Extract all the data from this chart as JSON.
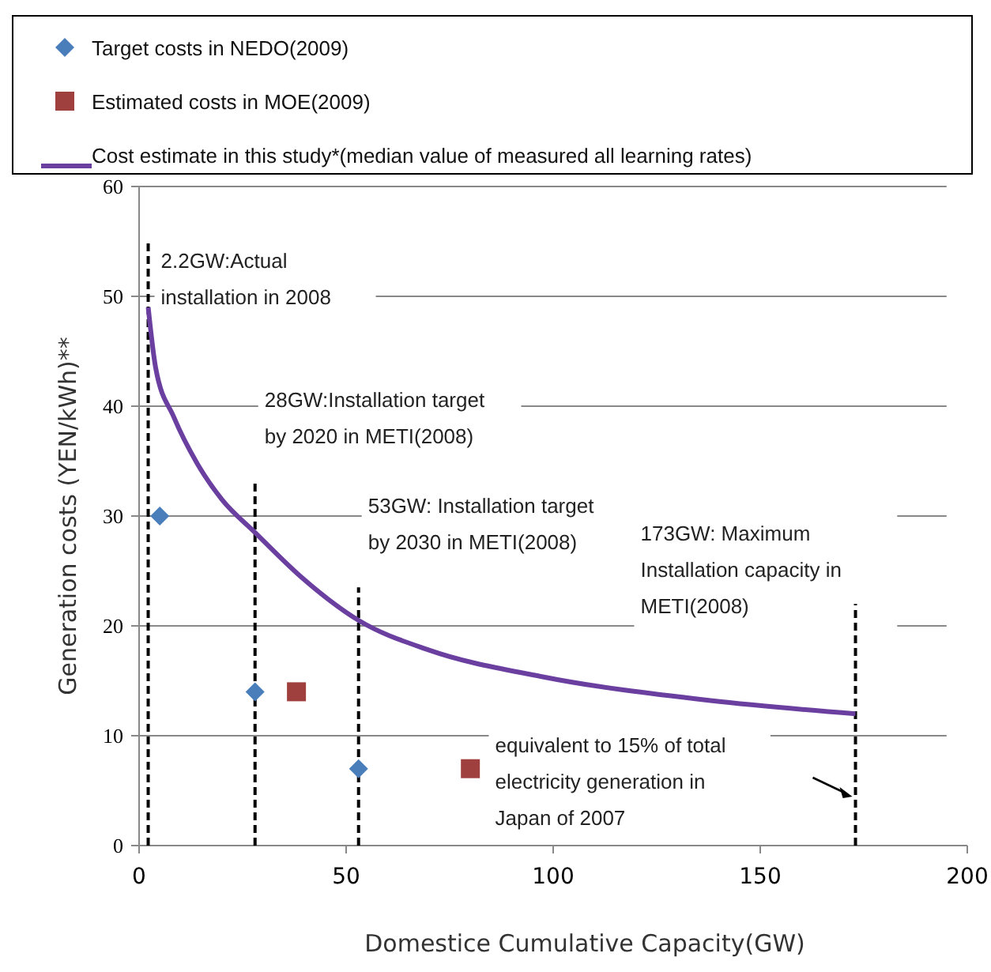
{
  "chart_data": {
    "type": "scatter",
    "xlabel": "Domestice Cumulative Capacity(GW)",
    "ylabel": "Generation costs (YEN/kWh)**",
    "xlim": [
      0,
      200
    ],
    "ylim": [
      0,
      60
    ],
    "xticks": [
      0,
      50,
      100,
      150,
      200
    ],
    "yticks": [
      0,
      10,
      20,
      30,
      40,
      50,
      60
    ],
    "grid": "y",
    "legend": "top",
    "series": [
      {
        "name": "Target costs in NEDO(2009)",
        "marker": "diamond",
        "color": "#4a7ebb",
        "x": [
          5,
          28,
          53
        ],
        "values": [
          30,
          14,
          7
        ]
      },
      {
        "name": "Estimated costs in MOE(2009)",
        "marker": "square",
        "color": "#a0403e",
        "x": [
          38,
          80
        ],
        "values": [
          14,
          7
        ]
      },
      {
        "name": "Cost estimate in this study*(median value of measured all learning rates)",
        "type": "line",
        "marker": "none",
        "color": "#6a3fa0",
        "x": [
          2.2,
          4,
          8.4,
          14,
          20,
          28,
          39,
          53,
          70,
          97,
          138,
          173
        ],
        "values": [
          49,
          43.5,
          39,
          34.8,
          31.5,
          28.5,
          24.5,
          20.5,
          17.8,
          15.4,
          13.2,
          12
        ]
      }
    ],
    "ref_lines": [
      {
        "axis": "x",
        "value": 2.2,
        "label": "2.2GW:Actual installation in 2008",
        "line_style": "dashed",
        "color": "#000000"
      },
      {
        "axis": "x",
        "value": 28,
        "label": "28GW:Installation target by 2020 in METI(2008)",
        "line_style": "dashed",
        "color": "#000000"
      },
      {
        "axis": "x",
        "value": 53,
        "label": "53GW: Installation target by 2030 in METI(2008)",
        "line_style": "dashed",
        "color": "#000000"
      },
      {
        "axis": "x",
        "value": 173,
        "label": "173GW: Maximum Installation capacity in METI(2008)",
        "line_style": "dashed",
        "color": "#000000"
      }
    ],
    "annotations": [
      "equivalent  to 15% of total electricity generation in Japan of 2007"
    ]
  }
}
